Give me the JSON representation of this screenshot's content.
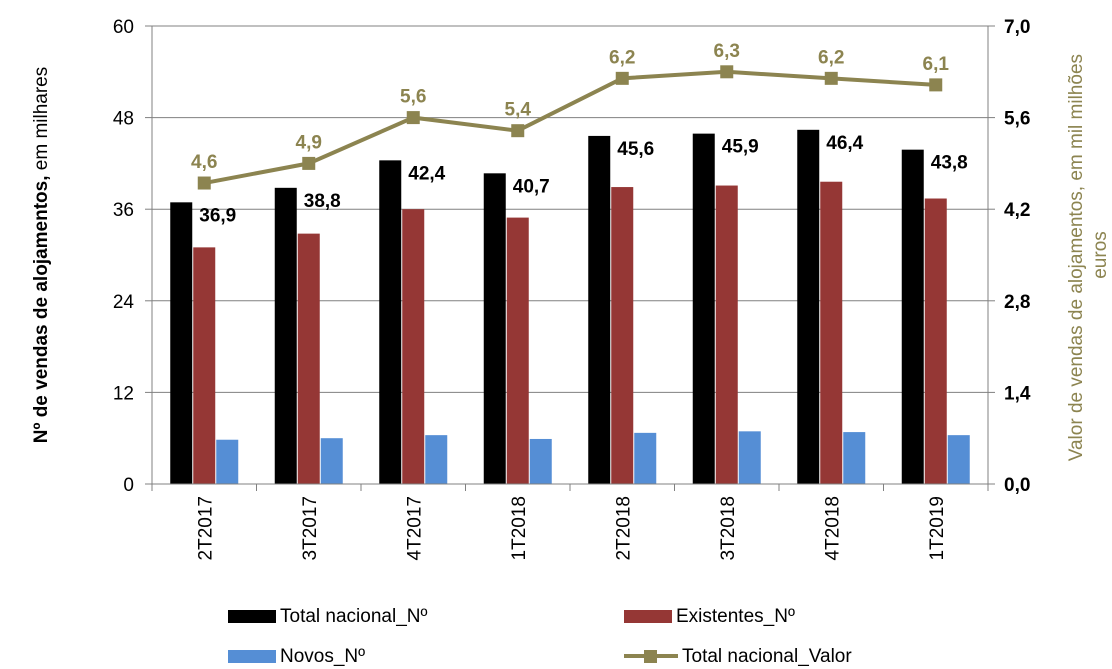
{
  "chart_data": {
    "type": "bar",
    "categories": [
      "2T2017",
      "3T2017",
      "4T2017",
      "1T2018",
      "2T2018",
      "3T2018",
      "4T2018",
      "1T2019"
    ],
    "series": [
      {
        "name": "Total nacional_Nº",
        "type": "bar",
        "axis": "left",
        "color": "#000000",
        "values": [
          36.9,
          38.8,
          42.4,
          40.7,
          45.6,
          45.9,
          46.4,
          43.8
        ],
        "labels": [
          "36,9",
          "38,8",
          "42,4",
          "40,7",
          "45,6",
          "45,9",
          "46,4",
          "43,8"
        ]
      },
      {
        "name": "Existentes_Nº",
        "type": "bar",
        "axis": "left",
        "color": "#953735",
        "values": [
          31.0,
          32.8,
          36.0,
          34.9,
          38.9,
          39.1,
          39.6,
          37.4
        ]
      },
      {
        "name": "Novos_Nº",
        "type": "bar",
        "axis": "left",
        "color": "#558ED5",
        "values": [
          5.8,
          6.0,
          6.4,
          5.9,
          6.7,
          6.9,
          6.8,
          6.4
        ]
      },
      {
        "name": "Total nacional_Valor",
        "type": "line",
        "axis": "right",
        "color": "#8C8450",
        "values": [
          4.6,
          4.9,
          5.6,
          5.4,
          6.2,
          6.3,
          6.2,
          6.1
        ],
        "labels": [
          "4,6",
          "4,9",
          "5,6",
          "5,4",
          "6,2",
          "6,3",
          "6,2",
          "6,1"
        ]
      }
    ],
    "y_left": {
      "label_bold": "Nº de vendas de alojamentos,",
      "label_normal": " em milhares",
      "range": [
        0,
        60
      ],
      "ticks": [
        "0",
        "12",
        "24",
        "36",
        "48",
        "60"
      ]
    },
    "y_right": {
      "label_line1": "Valor de vendas de alojamentos, em mil milhões",
      "label_line2": "euros",
      "range": [
        0,
        7
      ],
      "ticks": [
        "0,0",
        "1,4",
        "2,8",
        "4,2",
        "5,6",
        "7,0"
      ],
      "color": "#8C8450"
    },
    "grid": "horizontal",
    "legend_position": "bottom"
  }
}
